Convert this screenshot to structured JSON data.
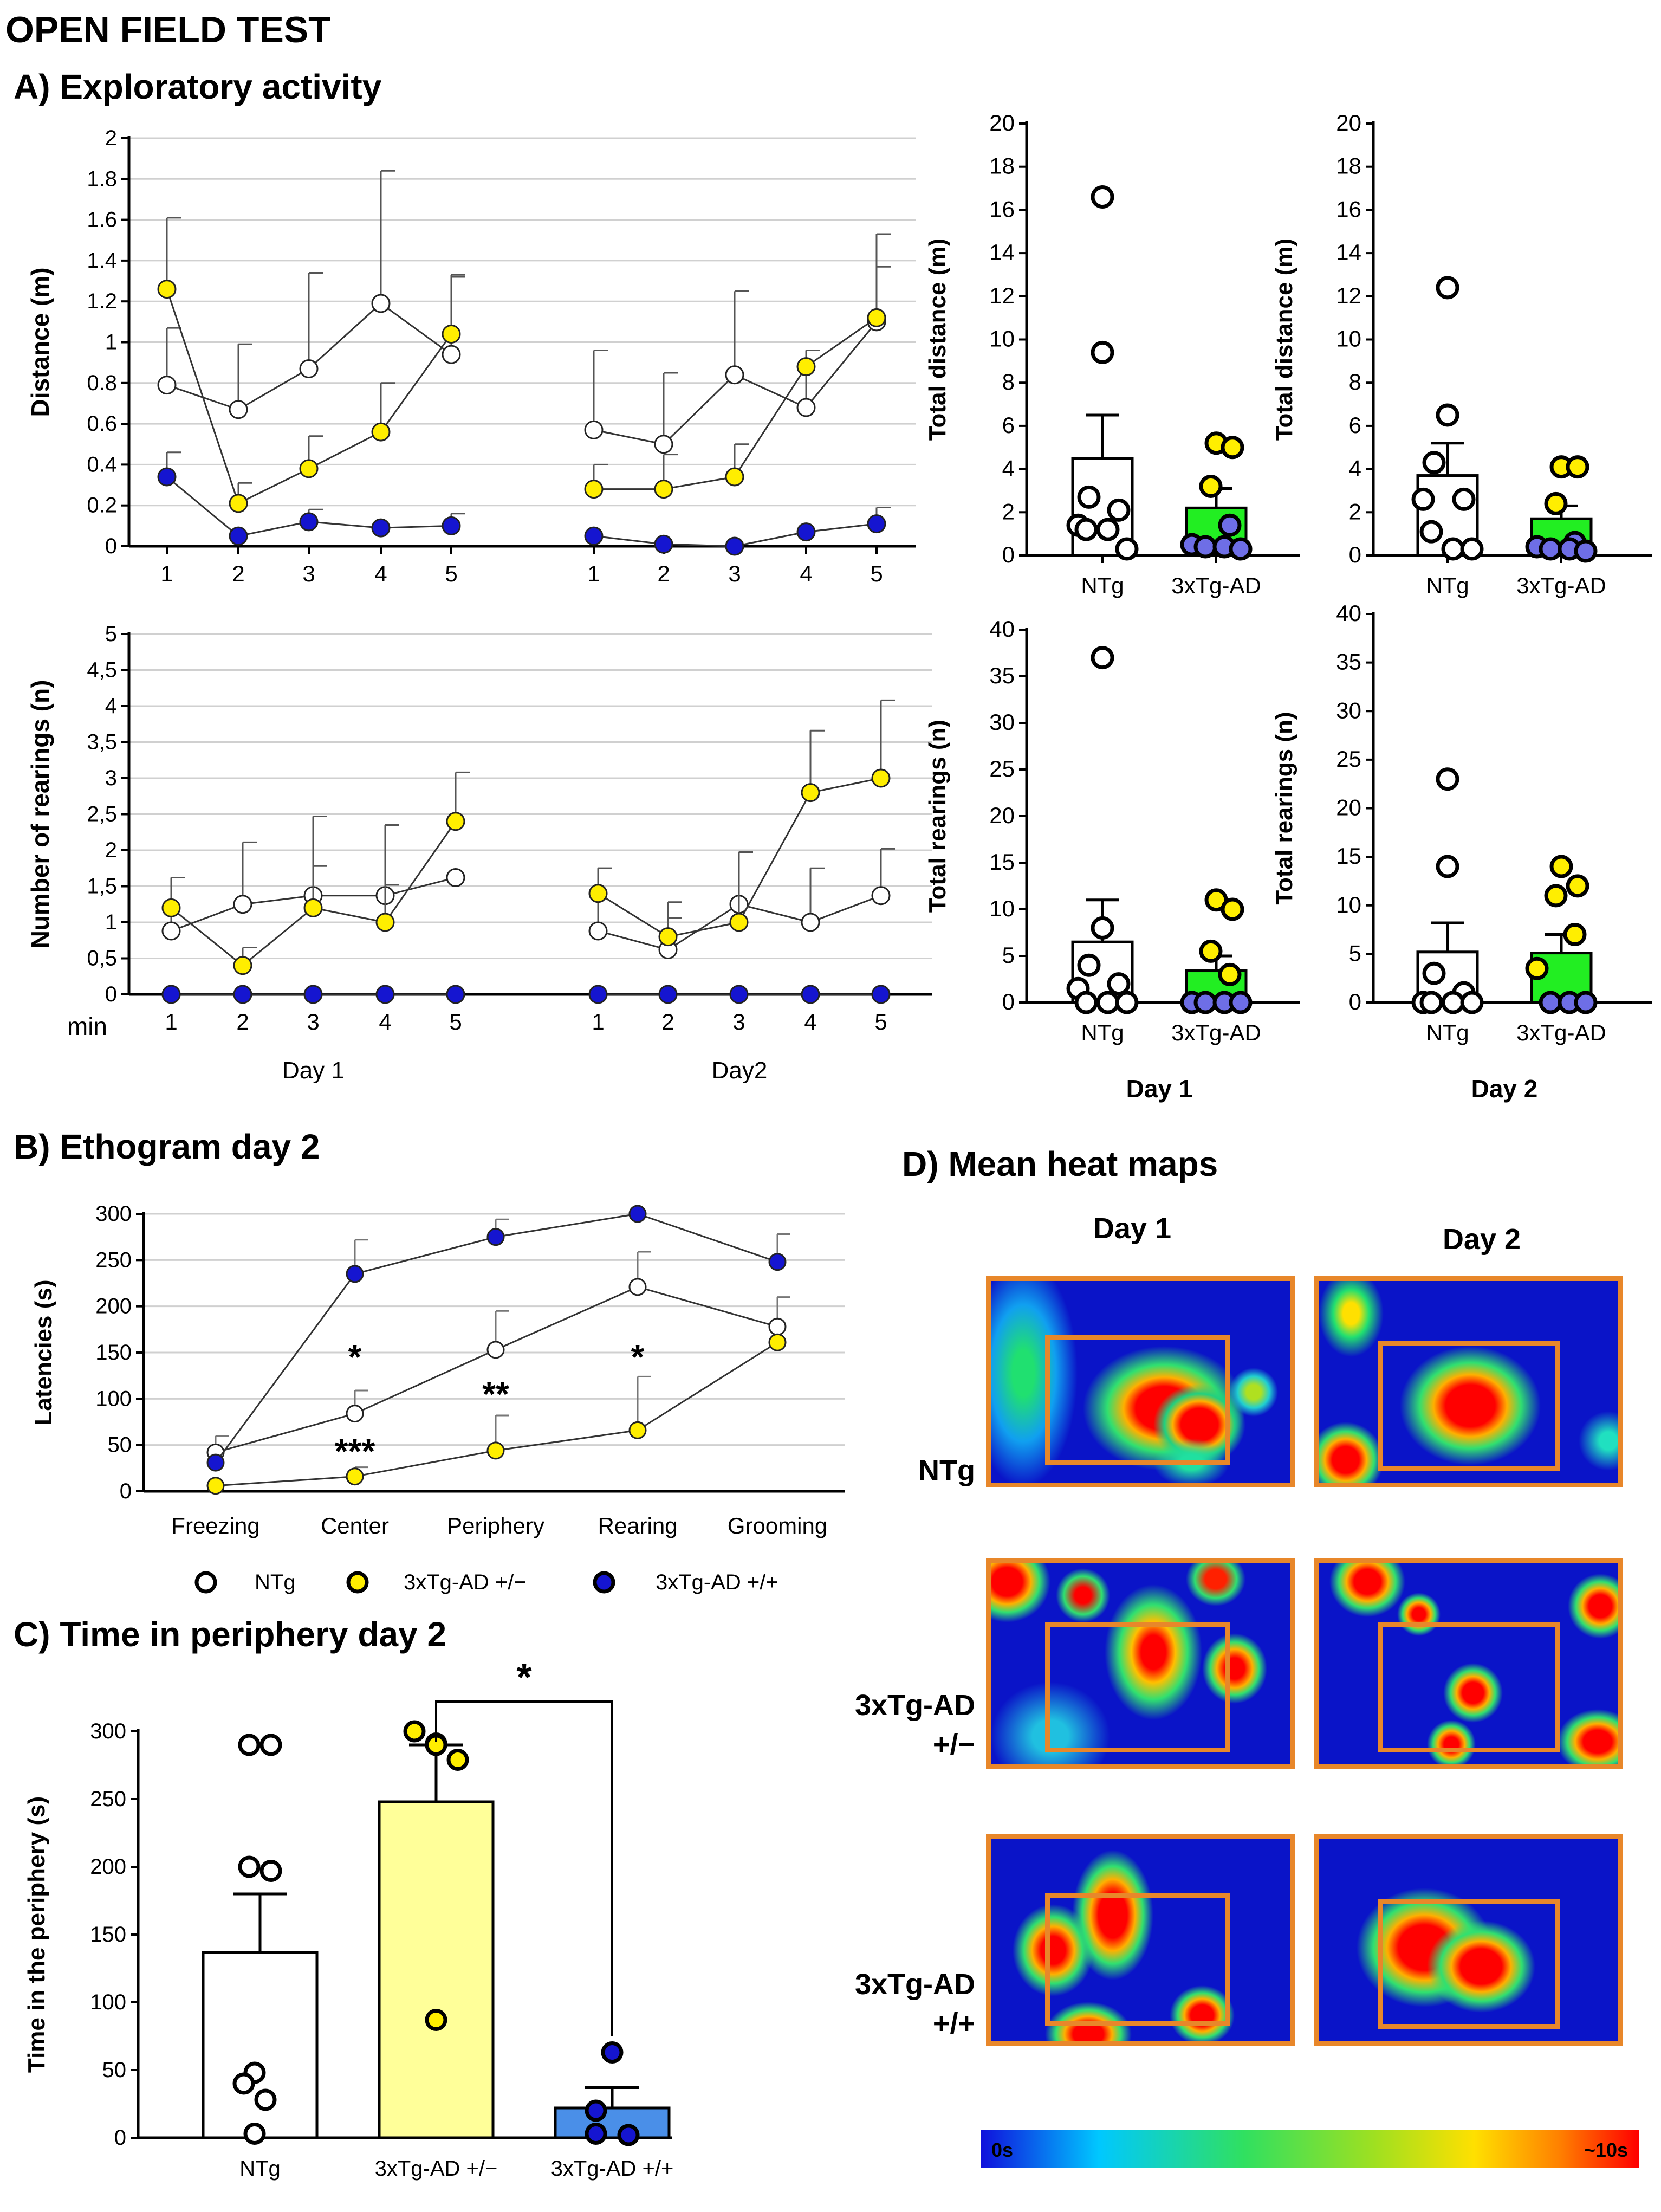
{
  "figure": {
    "title": "OPEN FIELD TEST",
    "panel_a_title": "A) Exploratory activity",
    "panel_b_title": "B) Ethogram day 2",
    "panel_c_title": "C) Time in periphery day 2",
    "panel_d_title": "D) Mean heat maps"
  },
  "colors": {
    "ntg": "#ffffff",
    "het": "#ffee00",
    "hom": "#1515d0",
    "green_bar": "#22ee22",
    "het_bar": "#ffff99",
    "hom_bar": "#4a8fe8",
    "purple_dot": "#6e6ee6",
    "heat_border": "#e8872a"
  },
  "legend": {
    "ntg": "NTg",
    "het": "3xTg-AD +/−",
    "hom": "3xTg-AD +/+"
  },
  "chart_data": [
    {
      "id": "distance_line",
      "type": "line",
      "ylabel": "Distance (m)",
      "ylim": [
        0,
        2
      ],
      "yticks": [
        "2",
        "1.8",
        "1.6",
        "1.4",
        "1.2",
        "1",
        "0.8",
        "0.6",
        "0.4",
        "0.2",
        "0"
      ],
      "xticks": [
        "1",
        "2",
        "3",
        "4",
        "5",
        "1",
        "2",
        "3",
        "4",
        "5"
      ],
      "grid": true,
      "series": [
        {
          "name": "NTg",
          "values": [
            0.79,
            0.67,
            0.87,
            1.19,
            0.94,
            0.57,
            0.5,
            0.84,
            0.68,
            1.1
          ],
          "err": [
            0.28,
            0.32,
            0.47,
            0.65,
            0.38,
            0.39,
            0.35,
            0.41,
            0.28,
            0.27
          ]
        },
        {
          "name": "3xTg-AD +/−",
          "values": [
            1.26,
            0.21,
            0.38,
            0.56,
            1.04,
            0.28,
            0.28,
            0.34,
            0.88,
            1.12
          ],
          "err": [
            0.35,
            0.1,
            0.16,
            0.24,
            0.29,
            0.12,
            0.17,
            0.16,
            0.08,
            0.41
          ]
        },
        {
          "name": "3xTg-AD +/+",
          "values": [
            0.34,
            0.05,
            0.12,
            0.09,
            0.1,
            0.05,
            0.01,
            0.0,
            0.07,
            0.11
          ],
          "err": [
            0.12,
            0.0,
            0.06,
            0.0,
            0.06,
            0.0,
            0.0,
            0.0,
            0.0,
            0.08
          ]
        }
      ]
    },
    {
      "id": "rearings_line",
      "type": "line",
      "ylabel": "Number of rearings (n)",
      "ylim": [
        0,
        5
      ],
      "yticks": [
        "5",
        "4,5",
        "4",
        "3,5",
        "3",
        "2,5",
        "2",
        "1,5",
        "1",
        "0,5",
        "0"
      ],
      "xticks": [
        "1",
        "2",
        "3",
        "4",
        "5",
        "1",
        "2",
        "3",
        "4",
        "5"
      ],
      "xunit": "min",
      "day_labels": [
        "Day 1",
        "Day2"
      ],
      "grid": true,
      "series": [
        {
          "name": "NTg",
          "values": [
            0.88,
            1.25,
            1.37,
            1.37,
            1.62,
            0.88,
            0.62,
            1.25,
            1.0,
            1.37
          ],
          "err": [
            0.74,
            0.86,
            1.1,
            0.98,
            0,
            0.87,
            0.66,
            0.72,
            0.75,
            0.65
          ]
        },
        {
          "name": "3xTg-AD +/−",
          "values": [
            1.2,
            0.4,
            1.2,
            1.0,
            2.4,
            1.4,
            0.8,
            1.0,
            2.8,
            3.0
          ],
          "err": [
            0.42,
            0.25,
            0.58,
            0.52,
            0.68,
            0.35,
            0.26,
            0.98,
            0.86,
            1.08
          ]
        },
        {
          "name": "3xTg-AD +/+",
          "values": [
            0,
            0,
            0,
            0,
            0,
            0,
            0,
            0,
            0,
            0
          ]
        }
      ]
    },
    {
      "id": "dist_day1",
      "type": "bar",
      "ylabel": "Total distance (m)",
      "ylim": [
        0,
        20
      ],
      "yticks": [
        "20",
        "18",
        "16",
        "14",
        "12",
        "10",
        "8",
        "6",
        "4",
        "2",
        "0"
      ],
      "categories": [
        "NTg",
        "3xTg-AD"
      ],
      "values": [
        4.5,
        2.2
      ],
      "err": [
        2.0,
        0.9
      ],
      "points": [
        [
          16.6,
          9.4,
          2.7,
          2.1,
          1.4,
          1.2,
          1.2,
          0.3
        ],
        [
          5.2,
          5.0,
          3.2,
          1.4,
          0.5,
          0.4,
          0.4,
          0.3
        ]
      ]
    },
    {
      "id": "dist_day2",
      "type": "bar",
      "ylabel": "Total distance (m)",
      "ylim": [
        0,
        20
      ],
      "yticks": [
        "20",
        "18",
        "16",
        "14",
        "12",
        "10",
        "8",
        "6",
        "4",
        "2",
        "0"
      ],
      "categories": [
        "NTg",
        "3xTg-AD"
      ],
      "values": [
        3.7,
        1.7
      ],
      "err": [
        1.5,
        0.6
      ],
      "points": [
        [
          12.4,
          6.5,
          4.3,
          2.6,
          2.6,
          1.1,
          0.3,
          0.3
        ],
        [
          4.1,
          4.1,
          2.4,
          0.6,
          0.4,
          0.3,
          0.3,
          0.2
        ]
      ]
    },
    {
      "id": "rear_day1",
      "type": "bar",
      "ylabel": "Total rearings (n)",
      "ylim": [
        0,
        40
      ],
      "yticks": [
        "40",
        "35",
        "30",
        "25",
        "20",
        "15",
        "10",
        "5",
        "0"
      ],
      "categories": [
        "NTg",
        "3xTg-AD"
      ],
      "xlabel": "Day 1",
      "values": [
        6.5,
        3.4
      ],
      "err": [
        4.5,
        1.6
      ],
      "points": [
        [
          37.0,
          8.0,
          4.0,
          2.0,
          1.5,
          0.0,
          0.0,
          0.0
        ],
        [
          11.0,
          10.0,
          5.5,
          3.0,
          0.0,
          0.0,
          0.0,
          0.0
        ]
      ]
    },
    {
      "id": "rear_day2",
      "type": "bar",
      "ylabel": "Total rearings (n)",
      "ylim": [
        0,
        40
      ],
      "yticks": [
        "40",
        "35",
        "30",
        "25",
        "20",
        "15",
        "10",
        "5",
        "0"
      ],
      "categories": [
        "NTg",
        "3xTg-AD"
      ],
      "xlabel": "Day 2",
      "values": [
        5.2,
        5.1
      ],
      "err": [
        3.0,
        1.9
      ],
      "points": [
        [
          23.0,
          14.0,
          3.0,
          1.0,
          0.0,
          0.0,
          0.0,
          0.0
        ],
        [
          14.0,
          12.0,
          11.0,
          7.0,
          3.5,
          0.0,
          0.0,
          0.0
        ]
      ]
    },
    {
      "id": "ethogram",
      "type": "line",
      "ylabel": "Latencies (s)",
      "ylim": [
        0,
        300
      ],
      "yticks": [
        "300",
        "250",
        "200",
        "150",
        "100",
        "50",
        "0"
      ],
      "categories": [
        "Freezing",
        "Center",
        "Periphery",
        "Rearing",
        "Grooming"
      ],
      "series": [
        {
          "name": "NTg",
          "values": [
            42,
            84,
            153,
            221,
            178
          ],
          "err": [
            18,
            25,
            42,
            38,
            32
          ]
        },
        {
          "name": "3xTg-AD +/−",
          "values": [
            6,
            16,
            44,
            66,
            161
          ],
          "err": [
            0,
            10,
            38,
            58,
            0
          ]
        },
        {
          "name": "3xTg-AD +/+",
          "values": [
            31,
            235,
            275,
            300,
            248
          ],
          "err": [
            0,
            37,
            19,
            0,
            30
          ]
        }
      ],
      "annotations": [
        {
          "category": "Center",
          "value": 150,
          "text": "*"
        },
        {
          "category": "Center",
          "value": 48,
          "text": "***"
        },
        {
          "category": "Periphery",
          "value": 110,
          "text": "**"
        },
        {
          "category": "Rearing",
          "value": 150,
          "text": "*"
        }
      ]
    },
    {
      "id": "periphery",
      "type": "bar",
      "ylabel": "Time in the periphery (s)",
      "ylim": [
        0,
        300
      ],
      "yticks": [
        "300",
        "250",
        "200",
        "150",
        "100",
        "50",
        "0"
      ],
      "categories": [
        "NTg",
        "3xTg-AD +/−",
        "3xTg-AD +/+"
      ],
      "values": [
        137,
        248,
        22
      ],
      "err": [
        43,
        42,
        15
      ],
      "points": [
        [
          290,
          290,
          200,
          197,
          48,
          40,
          28,
          3
        ],
        [
          300,
          291,
          290,
          279,
          87
        ],
        [
          63,
          20,
          3,
          2
        ]
      ],
      "significance": "*"
    }
  ],
  "heatmaps": {
    "column_labels": [
      "Day 1",
      "Day 2"
    ],
    "row_labels": [
      "NTg",
      "3xTg-AD\n+/−",
      "3xTg-AD\n+/+"
    ],
    "scale_min": "0s",
    "scale_max": "~10s"
  }
}
